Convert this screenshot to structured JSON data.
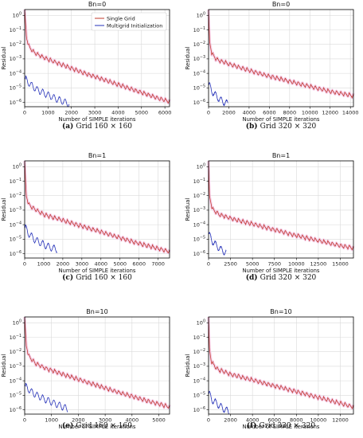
{
  "colors": {
    "single": "#c0392b",
    "multi": "#2430b8",
    "halo": "#f2c4e6",
    "grid": "#d9d9d9",
    "axis": "#000000"
  },
  "legend": {
    "single": "Single Grid",
    "multi": "Multigrid Initialization"
  },
  "chart_data": [
    {
      "type": "line",
      "title": "Bn=0",
      "xlabel": "Number of SIMPLE iterations",
      "ylabel": "Residual",
      "caption_letter": "(a)",
      "caption_text": "Grid 160 × 160",
      "xlim": [
        0,
        6200
      ],
      "xticks": [
        "0",
        "1000",
        "2000",
        "3000",
        "4000",
        "5000",
        "6000"
      ],
      "xtick_values": [
        0,
        1000,
        2000,
        3000,
        4000,
        5000,
        6000
      ],
      "yscale": "log",
      "ylim_exp": [
        -6.3,
        0.4
      ],
      "yticks": [
        "10^0",
        "10^-1",
        "10^-2",
        "10^-3",
        "10^-4",
        "10^-5",
        "10^-6"
      ],
      "ytick_exps": [
        0,
        -1,
        -2,
        -3,
        -4,
        -5,
        -6
      ],
      "grid": true,
      "legend_position": "top-right",
      "show_legend": true,
      "series": [
        {
          "name": "Single Grid",
          "x": [
            0,
            80,
            200,
            400,
            800,
            1500,
            2500,
            3500,
            4500,
            5500,
            6200
          ],
          "log10_y": [
            0.4,
            -1.6,
            -2.2,
            -2.55,
            -2.9,
            -3.35,
            -3.95,
            -4.5,
            -5.05,
            -5.6,
            -5.95
          ]
        },
        {
          "name": "Multigrid Initialization",
          "x": [
            0,
            200,
            500,
            1000,
            1500,
            1900
          ],
          "log10_y": [
            -4.3,
            -4.7,
            -5.1,
            -5.5,
            -5.85,
            -6.1
          ]
        }
      ]
    },
    {
      "type": "line",
      "title": "Bn=0",
      "xlabel": "Number of SIMPLE iterations",
      "ylabel": "Residual",
      "caption_letter": "(b)",
      "caption_text": "Grid 320 × 320",
      "xlim": [
        0,
        14300
      ],
      "xticks": [
        "0",
        "2000",
        "4000",
        "6000",
        "8000",
        "10000",
        "12000",
        "14000"
      ],
      "xtick_values": [
        0,
        2000,
        4000,
        6000,
        8000,
        10000,
        12000,
        14000
      ],
      "yscale": "log",
      "ylim_exp": [
        -6.3,
        0.4
      ],
      "yticks": [
        "10^0",
        "10^-1",
        "10^-2",
        "10^-3",
        "10^-4",
        "10^-5",
        "10^-6"
      ],
      "ytick_exps": [
        0,
        -1,
        -2,
        -3,
        -4,
        -5,
        -6
      ],
      "grid": true,
      "show_legend": false,
      "series": [
        {
          "name": "Single Grid",
          "x": [
            0,
            100,
            300,
            800,
            2000,
            4000,
            6000,
            8000,
            10000,
            12000,
            14300
          ],
          "log10_y": [
            0.4,
            -1.8,
            -2.6,
            -3.05,
            -3.35,
            -3.8,
            -4.2,
            -4.55,
            -4.9,
            -5.25,
            -5.55
          ]
        },
        {
          "name": "Multigrid Initialization",
          "x": [
            0,
            300,
            800,
            1300,
            1900
          ],
          "log10_y": [
            -4.7,
            -5.2,
            -5.6,
            -5.9,
            -6.1
          ]
        }
      ]
    },
    {
      "type": "line",
      "title": "Bn=1",
      "xlabel": "Number of SIMPLE iterations",
      "ylabel": "Residual",
      "caption_letter": "(c)",
      "caption_text": "Grid 160 × 160",
      "xlim": [
        0,
        7600
      ],
      "xticks": [
        "0",
        "1000",
        "2000",
        "3000",
        "4000",
        "5000",
        "6000",
        "7000"
      ],
      "xtick_values": [
        0,
        1000,
        2000,
        3000,
        4000,
        5000,
        6000,
        7000
      ],
      "yscale": "log",
      "ylim_exp": [
        -6.3,
        0.4
      ],
      "yticks": [
        "10^0",
        "10^-1",
        "10^-2",
        "10^-3",
        "10^-4",
        "10^-5",
        "10^-6"
      ],
      "ytick_exps": [
        0,
        -1,
        -2,
        -3,
        -4,
        -5,
        -6
      ],
      "grid": true,
      "show_legend": false,
      "series": [
        {
          "name": "Single Grid",
          "x": [
            0,
            80,
            200,
            500,
            1000,
            2000,
            3000,
            4000,
            5000,
            6000,
            7000,
            7600
          ],
          "log10_y": [
            0.4,
            -2.0,
            -2.6,
            -2.9,
            -3.3,
            -3.7,
            -4.1,
            -4.5,
            -4.9,
            -5.3,
            -5.65,
            -5.85
          ]
        },
        {
          "name": "Multigrid Initialization",
          "x": [
            0,
            200,
            500,
            900,
            1300,
            1700
          ],
          "log10_y": [
            -4.1,
            -4.6,
            -5.0,
            -5.3,
            -5.55,
            -5.7
          ]
        }
      ]
    },
    {
      "type": "line",
      "title": "Bn=1",
      "xlabel": "Number of SIMPLE iterations",
      "ylabel": "Residual",
      "caption_letter": "(d)",
      "caption_text": "Grid 320 × 320",
      "xlim": [
        0,
        16500
      ],
      "xticks": [
        "0",
        "2500",
        "5000",
        "7500",
        "10000",
        "12500",
        "15000"
      ],
      "xtick_values": [
        0,
        2500,
        5000,
        7500,
        10000,
        12500,
        15000
      ],
      "yscale": "log",
      "ylim_exp": [
        -6.3,
        0.4
      ],
      "yticks": [
        "10^0",
        "10^-1",
        "10^-2",
        "10^-3",
        "10^-4",
        "10^-5",
        "10^-6"
      ],
      "ytick_exps": [
        0,
        -1,
        -2,
        -3,
        -4,
        -5,
        -6
      ],
      "grid": true,
      "show_legend": false,
      "series": [
        {
          "name": "Single Grid",
          "x": [
            0,
            100,
            400,
            1200,
            3000,
            5000,
            7500,
            10000,
            12500,
            15000,
            16500
          ],
          "log10_y": [
            0.4,
            -2.0,
            -2.9,
            -3.3,
            -3.65,
            -3.95,
            -4.35,
            -4.75,
            -5.1,
            -5.45,
            -5.6
          ]
        },
        {
          "name": "Multigrid Initialization",
          "x": [
            0,
            400,
            900,
            1500,
            2000
          ],
          "log10_y": [
            -4.6,
            -5.1,
            -5.45,
            -5.75,
            -5.95
          ]
        }
      ]
    },
    {
      "type": "line",
      "title": "Bn=10",
      "xlabel": "Number of SIMPLE iterations",
      "ylabel": "Residual",
      "caption_letter": "(e)",
      "caption_text": "Grid 160 × 160",
      "xlim": [
        0,
        5400
      ],
      "xticks": [
        "0",
        "1000",
        "2000",
        "3000",
        "4000",
        "5000"
      ],
      "xtick_values": [
        0,
        1000,
        2000,
        3000,
        4000,
        5000
      ],
      "yscale": "log",
      "ylim_exp": [
        -6.3,
        0.4
      ],
      "yticks": [
        "10^0",
        "10^-1",
        "10^-2",
        "10^-3",
        "10^-4",
        "10^-5",
        "10^-6"
      ],
      "ytick_exps": [
        0,
        -1,
        -2,
        -3,
        -4,
        -5,
        -6
      ],
      "grid": true,
      "show_legend": false,
      "series": [
        {
          "name": "Single Grid",
          "x": [
            0,
            60,
            150,
            400,
            800,
            1500,
            2500,
            3500,
            4500,
            5400
          ],
          "log10_y": [
            0.4,
            -1.6,
            -2.3,
            -2.8,
            -3.15,
            -3.6,
            -4.2,
            -4.8,
            -5.35,
            -5.8
          ]
        },
        {
          "name": "Multigrid Initialization",
          "x": [
            0,
            200,
            500,
            900,
            1300,
            1600
          ],
          "log10_y": [
            -4.3,
            -4.7,
            -5.05,
            -5.4,
            -5.7,
            -5.95
          ]
        }
      ]
    },
    {
      "type": "line",
      "title": "Bn=10",
      "xlabel": "Number of SIMPLE iterations",
      "ylabel": "Residual",
      "caption_letter": "(f)",
      "caption_text": "Grid 320 × 320",
      "xlim": [
        0,
        13200
      ],
      "xticks": [
        "0",
        "2000",
        "4000",
        "6000",
        "8000",
        "10000",
        "12000"
      ],
      "xtick_values": [
        0,
        2000,
        4000,
        6000,
        8000,
        10000,
        12000
      ],
      "yscale": "log",
      "ylim_exp": [
        -6.3,
        0.4
      ],
      "yticks": [
        "10^0",
        "10^-1",
        "10^-2",
        "10^-3",
        "10^-4",
        "10^-5",
        "10^-6"
      ],
      "ytick_exps": [
        0,
        -1,
        -2,
        -3,
        -4,
        -5,
        -6
      ],
      "grid": true,
      "show_legend": false,
      "series": [
        {
          "name": "Single Grid",
          "x": [
            0,
            80,
            250,
            800,
            2000,
            4000,
            6000,
            8000,
            10000,
            12000,
            13200
          ],
          "log10_y": [
            0.4,
            -1.8,
            -2.7,
            -3.2,
            -3.55,
            -3.95,
            -4.35,
            -4.75,
            -5.15,
            -5.55,
            -5.8
          ]
        },
        {
          "name": "Multigrid Initialization",
          "x": [
            0,
            300,
            800,
            1300,
            1900
          ],
          "log10_y": [
            -4.8,
            -5.3,
            -5.6,
            -5.9,
            -6.15
          ]
        }
      ]
    }
  ]
}
